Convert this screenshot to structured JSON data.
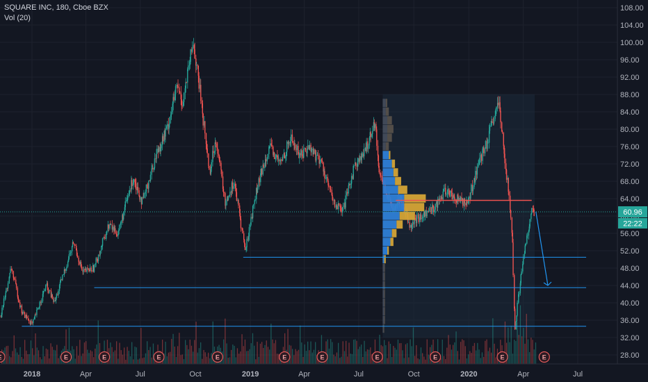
{
  "header": {
    "title": "SQUARE INC, 180, Cboe BZX",
    "volume_label": "Vol (20)"
  },
  "price_badges": {
    "last": "60.96",
    "countdown": "22:22",
    "color": "#26a69a"
  },
  "earnings_marker_label": "E",
  "colors": {
    "background": "#131722",
    "grid": "#1e222d",
    "up": "#26a69a",
    "down": "#ef5350",
    "hline": "#2196f3",
    "poc": "#ef5350",
    "vp_up": "#2e7fd6",
    "vp_down": "#d4a436",
    "range_box": "#1c2a3a"
  },
  "chart_data": {
    "type": "candlestick",
    "symbol": "SQUARE INC",
    "interval": "180",
    "exchange": "Cboe BZX",
    "y_ticks": [
      "108.00",
      "104.00",
      "100.00",
      "96.00",
      "92.00",
      "88.00",
      "84.00",
      "80.00",
      "76.00",
      "72.00",
      "68.00",
      "64.00",
      "60.00",
      "56.00",
      "52.00",
      "48.00",
      "44.00",
      "40.00",
      "36.00",
      "32.00",
      "28.00"
    ],
    "ylim": [
      26,
      110
    ],
    "x_ticks": [
      {
        "label": "2018",
        "date": "2018-01-01"
      },
      {
        "label": "Apr",
        "date": "2018-04-01"
      },
      {
        "label": "Jul",
        "date": "2018-07-01"
      },
      {
        "label": "Oct",
        "date": "2018-10-01"
      },
      {
        "label": "2019",
        "date": "2019-01-01"
      },
      {
        "label": "Apr",
        "date": "2019-04-01"
      },
      {
        "label": "Jul",
        "date": "2019-07-01"
      },
      {
        "label": "Oct",
        "date": "2019-10-01"
      },
      {
        "label": "2020",
        "date": "2020-01-01"
      },
      {
        "label": "Apr",
        "date": "2020-04-01"
      },
      {
        "label": "Jul",
        "date": "2020-07-01"
      }
    ],
    "price_path": [
      [
        "2017-11-10",
        37
      ],
      [
        "2017-11-28",
        48
      ],
      [
        "2017-12-15",
        38
      ],
      [
        "2018-01-02",
        35
      ],
      [
        "2018-01-25",
        44
      ],
      [
        "2018-02-08",
        40
      ],
      [
        "2018-03-12",
        54
      ],
      [
        "2018-03-27",
        47
      ],
      [
        "2018-04-15",
        48
      ],
      [
        "2018-05-10",
        58
      ],
      [
        "2018-05-25",
        56
      ],
      [
        "2018-06-20",
        69
      ],
      [
        "2018-07-05",
        63
      ],
      [
        "2018-07-30",
        75
      ],
      [
        "2018-08-15",
        80
      ],
      [
        "2018-09-01",
        90
      ],
      [
        "2018-09-10",
        86
      ],
      [
        "2018-09-28",
        100
      ],
      [
        "2018-10-10",
        88
      ],
      [
        "2018-10-25",
        70
      ],
      [
        "2018-11-05",
        78
      ],
      [
        "2018-11-20",
        63
      ],
      [
        "2018-12-05",
        68
      ],
      [
        "2018-12-24",
        52
      ],
      [
        "2019-01-10",
        65
      ],
      [
        "2019-02-01",
        76
      ],
      [
        "2019-02-20",
        72
      ],
      [
        "2019-03-10",
        78
      ],
      [
        "2019-03-25",
        74
      ],
      [
        "2019-04-10",
        76
      ],
      [
        "2019-05-01",
        72
      ],
      [
        "2019-05-20",
        63
      ],
      [
        "2019-06-05",
        61
      ],
      [
        "2019-06-25",
        72
      ],
      [
        "2019-07-10",
        74
      ],
      [
        "2019-07-28",
        82
      ],
      [
        "2019-08-05",
        70
      ],
      [
        "2019-08-25",
        62
      ],
      [
        "2019-09-10",
        64
      ],
      [
        "2019-09-25",
        58
      ],
      [
        "2019-10-15",
        60
      ],
      [
        "2019-11-05",
        62
      ],
      [
        "2019-11-25",
        66
      ],
      [
        "2019-12-10",
        64
      ],
      [
        "2019-12-31",
        63
      ],
      [
        "2020-01-15",
        71
      ],
      [
        "2020-02-01",
        77
      ],
      [
        "2020-02-20",
        86
      ],
      [
        "2020-03-01",
        74
      ],
      [
        "2020-03-09",
        64
      ],
      [
        "2020-03-15",
        52
      ],
      [
        "2020-03-18",
        33
      ],
      [
        "2020-03-23",
        40
      ],
      [
        "2020-04-03",
        52
      ],
      [
        "2020-04-15",
        61
      ],
      [
        "2020-04-20",
        60.96
      ]
    ],
    "last_price": 60.96,
    "horizontal_lines": [
      {
        "price": 50.5,
        "from": "2018-12-20",
        "to": "2020-07-15"
      },
      {
        "price": 43.5,
        "from": "2018-04-15",
        "to": "2020-07-15"
      },
      {
        "price": 34.6,
        "from": "2017-12-15",
        "to": "2020-07-15"
      },
      {
        "price": 63.6,
        "from": "2019-09-01",
        "to": "2020-04-15"
      }
    ],
    "volume_profile": {
      "from": "2019-08-10",
      "to": "2020-04-20",
      "low": 32,
      "high": 88,
      "rows": [
        {
          "price": 86,
          "up": 2,
          "down": 1
        },
        {
          "price": 84,
          "up": 2,
          "down": 2
        },
        {
          "price": 82,
          "up": 3,
          "down": 3
        },
        {
          "price": 80,
          "up": 3,
          "down": 4
        },
        {
          "price": 78,
          "up": 3,
          "down": 3
        },
        {
          "price": 76,
          "up": 2,
          "down": 2
        },
        {
          "price": 74,
          "up": 4,
          "down": 1
        },
        {
          "price": 72,
          "up": 6,
          "down": 2
        },
        {
          "price": 70,
          "up": 7,
          "down": 3
        },
        {
          "price": 68,
          "up": 8,
          "down": 4
        },
        {
          "price": 66,
          "up": 10,
          "down": 6
        },
        {
          "price": 64,
          "up": 14,
          "down": 14
        },
        {
          "price": 62,
          "up": 14,
          "down": 13
        },
        {
          "price": 60,
          "up": 11,
          "down": 10
        },
        {
          "price": 58,
          "up": 9,
          "down": 4
        },
        {
          "price": 56,
          "up": 6,
          "down": 3
        },
        {
          "price": 54,
          "up": 5,
          "down": 2
        },
        {
          "price": 52,
          "up": 3,
          "down": 1
        },
        {
          "price": 50,
          "up": 1,
          "down": 1
        },
        {
          "price": 48,
          "up": 1,
          "down": 0.5
        },
        {
          "price": 46,
          "up": 1,
          "down": 0.5
        },
        {
          "price": 44,
          "up": 1,
          "down": 0.5
        },
        {
          "price": 42,
          "up": 1,
          "down": 0.5
        },
        {
          "price": 40,
          "up": 1,
          "down": 0.5
        },
        {
          "price": 38,
          "up": 1,
          "down": 0.5
        },
        {
          "price": 36,
          "up": 1,
          "down": 0.5
        },
        {
          "price": 34,
          "up": 0.5,
          "down": 0.5
        }
      ]
    },
    "projection_arrow": {
      "from": [
        "2020-04-22",
        61
      ],
      "to": [
        "2020-05-12",
        44
      ]
    },
    "earnings_dates": [
      "2017-11-08",
      "2018-02-27",
      "2018-05-02",
      "2018-08-01",
      "2018-11-07",
      "2019-02-27",
      "2019-05-01",
      "2019-08-01",
      "2019-11-06",
      "2020-02-26",
      "2020-05-06"
    ]
  }
}
